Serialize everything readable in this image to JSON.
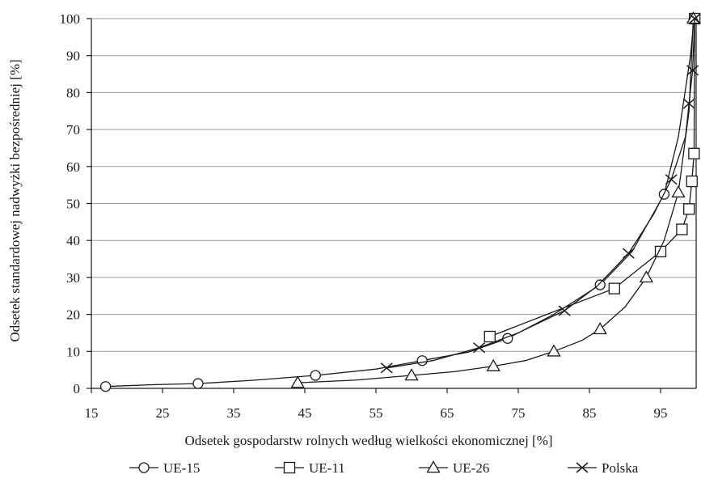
{
  "chart_data": {
    "type": "line",
    "title": "",
    "xlabel": "Odsetek gospodarstw rolnych według wielkości ekonomicznej [%]",
    "ylabel": "Odsetek standardowej nadwyżki bezpośredniej [%]",
    "xlim": [
      15,
      100
    ],
    "ylim": [
      0,
      100
    ],
    "x_ticks": [
      15,
      25,
      35,
      45,
      55,
      65,
      75,
      85,
      95
    ],
    "y_ticks": [
      0,
      10,
      20,
      30,
      40,
      50,
      60,
      70,
      80,
      90,
      100
    ],
    "grid": "horizontal",
    "legend_position": "bottom",
    "series": [
      {
        "name": "UE-15",
        "marker": "circle",
        "line": [
          [
            17,
            0.5
          ],
          [
            24,
            1
          ],
          [
            30,
            1.3
          ],
          [
            38,
            2.2
          ],
          [
            46.5,
            3.5
          ],
          [
            55,
            5.2
          ],
          [
            61.5,
            7.5
          ],
          [
            68,
            9.8
          ],
          [
            73.5,
            13.5
          ],
          [
            80,
            20
          ],
          [
            86.5,
            28
          ],
          [
            91,
            37
          ],
          [
            95.5,
            52.5
          ],
          [
            97.5,
            68
          ],
          [
            99.2,
            90
          ],
          [
            99.7,
            100
          ]
        ],
        "markers": [
          [
            17,
            0.5
          ],
          [
            30,
            1.3
          ],
          [
            46.5,
            3.5
          ],
          [
            61.5,
            7.5
          ],
          [
            73.5,
            13.5
          ],
          [
            86.5,
            28
          ],
          [
            95.5,
            52.5
          ],
          [
            99.7,
            100
          ]
        ]
      },
      {
        "name": "UE-11",
        "marker": "square",
        "line": [
          [
            71,
            14
          ],
          [
            79,
            20
          ],
          [
            88.5,
            27
          ],
          [
            95,
            37
          ],
          [
            98,
            43
          ],
          [
            99,
            48.5
          ],
          [
            99.4,
            56
          ],
          [
            99.7,
            63.5
          ],
          [
            99.8,
            100
          ]
        ],
        "markers": [
          [
            71,
            14
          ],
          [
            88.5,
            27
          ],
          [
            95,
            37
          ],
          [
            98,
            43
          ],
          [
            99,
            48.5
          ],
          [
            99.4,
            56
          ],
          [
            99.7,
            63.5
          ],
          [
            99.8,
            100
          ]
        ]
      },
      {
        "name": "UE-26",
        "marker": "triangle",
        "line": [
          [
            44,
            1.5
          ],
          [
            52,
            2.2
          ],
          [
            60,
            3.5
          ],
          [
            66,
            4.5
          ],
          [
            71.5,
            6
          ],
          [
            76,
            7.5
          ],
          [
            80,
            10
          ],
          [
            84,
            13
          ],
          [
            86.5,
            16
          ],
          [
            90,
            22
          ],
          [
            93,
            30
          ],
          [
            95.5,
            40
          ],
          [
            97.5,
            53
          ],
          [
            99,
            75
          ],
          [
            99.6,
            100
          ]
        ],
        "markers": [
          [
            44,
            1.5
          ],
          [
            60,
            3.5
          ],
          [
            71.5,
            6
          ],
          [
            80,
            10
          ],
          [
            86.5,
            16
          ],
          [
            93,
            30
          ],
          [
            97.5,
            53
          ],
          [
            99.6,
            100
          ]
        ]
      },
      {
        "name": "Polska",
        "marker": "x",
        "line": [
          [
            56.5,
            5.5
          ],
          [
            63,
            7.5
          ],
          [
            69.5,
            11
          ],
          [
            75,
            15
          ],
          [
            81.5,
            21
          ],
          [
            86,
            27.5
          ],
          [
            90.5,
            36.5
          ],
          [
            94,
            47
          ],
          [
            96.5,
            56.5
          ],
          [
            98.5,
            68
          ],
          [
            99,
            77
          ],
          [
            99.5,
            86
          ],
          [
            99.8,
            100
          ]
        ],
        "markers": [
          [
            56.5,
            5.5
          ],
          [
            69.5,
            11
          ],
          [
            81.5,
            21
          ],
          [
            90.5,
            36.5
          ],
          [
            96.5,
            56.5
          ],
          [
            99,
            77
          ],
          [
            99.5,
            86
          ],
          [
            99.8,
            100
          ]
        ]
      }
    ]
  }
}
